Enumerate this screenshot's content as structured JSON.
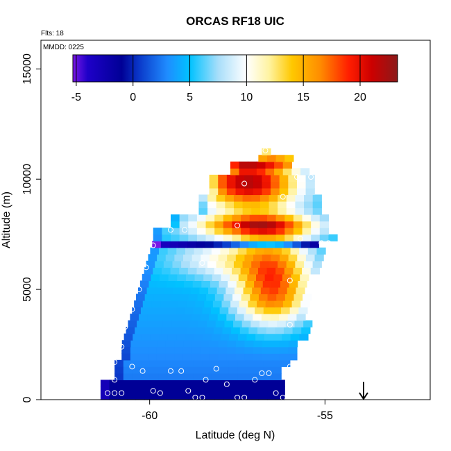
{
  "chart_data": {
    "type": "heatmap",
    "title": "ORCAS RF18 UIC",
    "xlabel": "Latitude (deg N)",
    "ylabel": "Altitude (m)",
    "annotations": {
      "flights": "Flts: 18",
      "date": "MMDD: 0225"
    },
    "xlim": [
      -63.1,
      -52.0
    ],
    "ylim": [
      0,
      16300
    ],
    "xticks": [
      -60,
      -55
    ],
    "yticks": [
      0,
      5000,
      10000,
      15000
    ],
    "colorbar": {
      "range": [
        -5.3,
        23.3
      ],
      "ticks": [
        -5,
        0,
        5,
        10,
        15,
        20
      ],
      "stops": [
        {
          "v": -5.3,
          "c": "#7a17e6"
        },
        {
          "v": -4.0,
          "c": "#1e00c8"
        },
        {
          "v": -1.0,
          "c": "#000096"
        },
        {
          "v": 0.5,
          "c": "#0a37c8"
        },
        {
          "v": 3.0,
          "c": "#1f8cff"
        },
        {
          "v": 5.0,
          "c": "#00c2ff"
        },
        {
          "v": 7.5,
          "c": "#a8defa"
        },
        {
          "v": 10.0,
          "c": "#ffffff"
        },
        {
          "v": 12.0,
          "c": "#fff3a0"
        },
        {
          "v": 14.0,
          "c": "#ffc800"
        },
        {
          "v": 16.5,
          "c": "#ff8c00"
        },
        {
          "v": 19.0,
          "c": "#ff1e00"
        },
        {
          "v": 21.0,
          "c": "#cd0000"
        },
        {
          "v": 23.3,
          "c": "#8b1a1a"
        }
      ]
    },
    "grid": false,
    "arrow": {
      "lat": -53.9,
      "alt_top": 800,
      "alt_bottom": 0
    },
    "observations": [
      [
        -61.2,
        300
      ],
      [
        -61.0,
        300
      ],
      [
        -61.0,
        900
      ],
      [
        -60.8,
        300
      ],
      [
        -60.5,
        1500
      ],
      [
        -60.2,
        1300
      ],
      [
        -59.9,
        400
      ],
      [
        -59.7,
        300
      ],
      [
        -59.4,
        1300
      ],
      [
        -59.1,
        1300
      ],
      [
        -58.9,
        400
      ],
      [
        -58.7,
        100
      ],
      [
        -58.5,
        100
      ],
      [
        -58.4,
        900
      ],
      [
        -58.1,
        1400
      ],
      [
        -57.8,
        700
      ],
      [
        -57.5,
        100
      ],
      [
        -57.3,
        100
      ],
      [
        -57.0,
        900
      ],
      [
        -56.8,
        1200
      ],
      [
        -56.6,
        1200
      ],
      [
        -56.4,
        300
      ],
      [
        -56.2,
        100
      ],
      [
        -56.0,
        1500
      ],
      [
        -61.0,
        1700
      ],
      [
        -60.8,
        2400
      ],
      [
        -60.7,
        3300
      ],
      [
        -60.5,
        4100
      ],
      [
        -60.3,
        5000
      ],
      [
        -60.1,
        6000
      ],
      [
        -59.9,
        7000
      ],
      [
        -59.4,
        7700
      ],
      [
        -59.0,
        7700
      ],
      [
        -58.5,
        6200
      ],
      [
        -57.5,
        7900
      ],
      [
        -55.7,
        7300
      ],
      [
        -54.9,
        7100
      ],
      [
        -55.0,
        8600
      ],
      [
        -56.0,
        5400
      ],
      [
        -56.0,
        3400
      ],
      [
        -57.3,
        9800
      ],
      [
        -56.2,
        9200
      ],
      [
        -55.8,
        10100
      ],
      [
        -55.4,
        10100
      ],
      [
        -56.7,
        11300
      ],
      [
        -55.1,
        7100
      ]
    ]
  }
}
